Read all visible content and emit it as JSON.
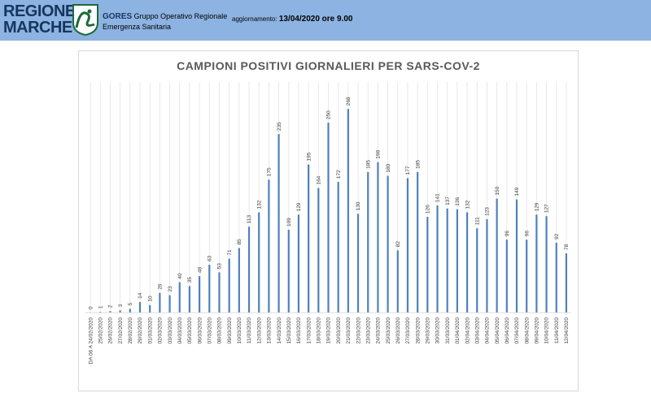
{
  "header": {
    "logo_line1": "REGIONE",
    "logo_line2": "MARCHE",
    "org_short": "GORES",
    "org_line1": "Gruppo Operativo Regionale",
    "org_line2": "Emergenza Sanitaria",
    "update_label": "aggiornamento:",
    "update_value": "13/04/2020 ore 9.00",
    "bg_color": "#8db3e2"
  },
  "chart_data": {
    "type": "bar",
    "title": "CAMPIONI POSITIVI GIORNALIERI PER SARS-COV-2",
    "xlabel": "",
    "ylabel": "",
    "ylim": [
      0,
      280
    ],
    "grid": true,
    "bar_color": "#4f81bd",
    "categories": [
      "DA 06 A 24/02/2020",
      "25/02/2020",
      "26/02/2020",
      "27/02/2020",
      "28/02/2020",
      "29/02/2020",
      "01/03/2020",
      "02/03/2020",
      "03/03/2020",
      "04/03/2020",
      "05/03/2020",
      "06/03/2020",
      "07/03/2020",
      "08/03/2020",
      "09/03/2020",
      "10/03/2020",
      "11/03/2020",
      "12/03/2020",
      "13/03/2020",
      "14/03/2020",
      "15/03/2020",
      "16/03/2020",
      "17/03/2020",
      "18/03/2020",
      "19/03/2020",
      "20/03/2020",
      "21/03/2020",
      "22/03/2020",
      "23/03/2020",
      "24/03/2020",
      "25/03/2020",
      "26/03/2020",
      "27/03/2020",
      "28/03/2020",
      "29/03/2020",
      "30/03/2020",
      "31/03/2020",
      "01/04/2020",
      "02/04/2020",
      "03/04/2020",
      "04/04/2020",
      "05/04/2020",
      "06/04/2020",
      "07/04/2020",
      "08/04/2020",
      "09/04/2020",
      "10/04/2020",
      "11/04/2020",
      "12/04/2020"
    ],
    "values": [
      0,
      1,
      2,
      3,
      5,
      14,
      10,
      26,
      23,
      40,
      35,
      48,
      63,
      53,
      71,
      85,
      113,
      132,
      175,
      235,
      109,
      129,
      195,
      164,
      250,
      172,
      268,
      130,
      185,
      198,
      180,
      82,
      177,
      185,
      126,
      141,
      137,
      136,
      132,
      111,
      123,
      150,
      96,
      149,
      96,
      129,
      127,
      92,
      78
    ]
  }
}
